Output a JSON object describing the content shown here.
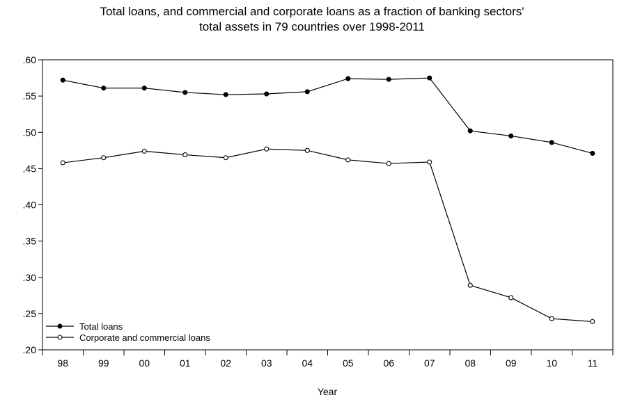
{
  "chart_data": {
    "type": "line",
    "title": [
      "Total loans, and commercial and corporate loans as a fraction of banking sectors'",
      "total assets in 79 countries over 1998-2011"
    ],
    "xlabel": "Year",
    "ylabel": "",
    "categories": [
      "98",
      "99",
      "00",
      "01",
      "02",
      "03",
      "04",
      "05",
      "06",
      "07",
      "08",
      "09",
      "10",
      "11"
    ],
    "ylim": [
      0.2,
      0.6
    ],
    "yticks": [
      0.6,
      0.55,
      0.5,
      0.45,
      0.4,
      0.35,
      0.3,
      0.25,
      0.2
    ],
    "ytick_labels": [
      ".60",
      ".55",
      ".50",
      ".45",
      ".40",
      ".35",
      ".30",
      ".25",
      ".20"
    ],
    "grid": false,
    "legend_position": "bottom-left",
    "series": [
      {
        "name": "Total loans",
        "marker": "filled-circle",
        "color": "#000000",
        "values": [
          0.572,
          0.561,
          0.561,
          0.555,
          0.552,
          0.553,
          0.556,
          0.574,
          0.573,
          0.575,
          0.502,
          0.495,
          0.486,
          0.471
        ]
      },
      {
        "name": "Corporate and commercial loans",
        "marker": "open-circle",
        "color": "#000000",
        "values": [
          0.458,
          0.465,
          0.474,
          0.469,
          0.465,
          0.477,
          0.475,
          0.462,
          0.457,
          0.459,
          0.289,
          0.272,
          0.243,
          0.239
        ]
      }
    ]
  }
}
